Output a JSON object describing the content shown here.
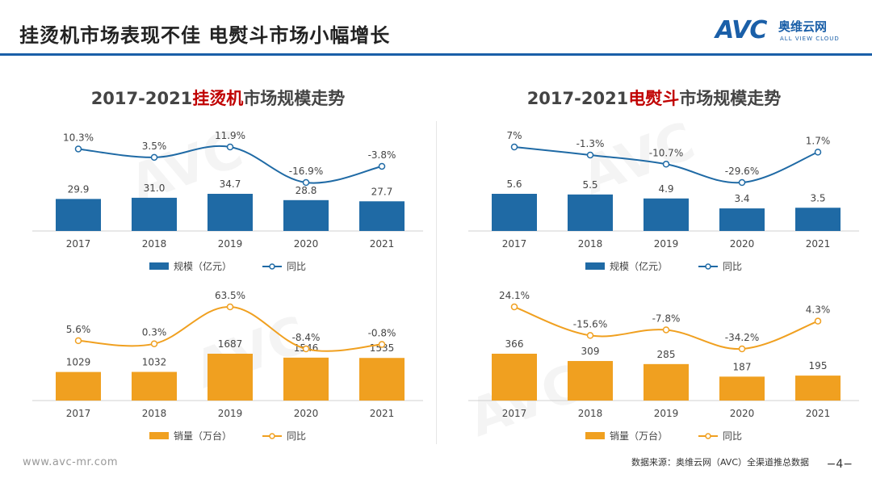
{
  "page": {
    "title": "挂烫机市场表现不佳  电熨斗市场小幅增长",
    "logo": {
      "mark": "AVC",
      "cn": "奥维云网",
      "en": "ALL VIEW CLOUD"
    },
    "footer_url": "www.avc-mr.com",
    "source": "数据来源：奥维云网（AVC）全渠道推总数据",
    "page_number": "−4−"
  },
  "sections": [
    {
      "title_prefix": "2017-2021",
      "title_highlight": "挂烫机",
      "title_suffix": "市场规模走势"
    },
    {
      "title_prefix": "2017-2021",
      "title_highlight": "电熨斗",
      "title_suffix": "市场规模走势"
    }
  ],
  "colors": {
    "blue": "#1f6aa5",
    "orange": "#f0a020",
    "line_blue": "#1f6aa5",
    "line_orange": "#f0a020",
    "accent": "#1a5fa8",
    "highlight": "#c00000"
  },
  "chart_data": [
    {
      "id": "garment-steamer-revenue",
      "type": "bar",
      "categories": [
        "2017",
        "2018",
        "2019",
        "2020",
        "2021"
      ],
      "series": [
        {
          "name": "规模（亿元）",
          "type": "bar",
          "values": [
            29.9,
            31.0,
            34.7,
            28.8,
            27.7
          ],
          "labels": [
            "29.9",
            "31.0",
            "34.7",
            "28.8",
            "27.7"
          ]
        },
        {
          "name": "同比",
          "type": "line",
          "values": [
            10.3,
            3.5,
            11.9,
            -16.9,
            -3.8
          ],
          "labels": [
            "10.3%",
            "3.5%",
            "11.9%",
            "-16.9%",
            "-3.8%"
          ]
        }
      ],
      "color": "blue"
    },
    {
      "id": "iron-revenue",
      "type": "bar",
      "categories": [
        "2017",
        "2018",
        "2019",
        "2020",
        "2021"
      ],
      "series": [
        {
          "name": "规模（亿元）",
          "type": "bar",
          "values": [
            5.6,
            5.5,
            4.9,
            3.4,
            3.5
          ],
          "labels": [
            "5.6",
            "5.5",
            "4.9",
            "3.4",
            "3.5"
          ]
        },
        {
          "name": "同比",
          "type": "line",
          "values": [
            7,
            -1.3,
            -10.7,
            -29.6,
            1.7
          ],
          "labels": [
            "7%",
            "-1.3%",
            "-10.7%",
            "-29.6%",
            "1.7%"
          ]
        }
      ],
      "color": "blue"
    },
    {
      "id": "garment-steamer-volume",
      "type": "bar",
      "categories": [
        "2017",
        "2018",
        "2019",
        "2020",
        "2021"
      ],
      "series": [
        {
          "name": "销量（万台）",
          "type": "bar",
          "values": [
            1029,
            1032,
            1687,
            1546,
            1535
          ],
          "labels": [
            "1029",
            "1032",
            "1687",
            "1546",
            "1535"
          ]
        },
        {
          "name": "同比",
          "type": "line",
          "values": [
            5.6,
            0.3,
            63.5,
            -8.4,
            -0.8
          ],
          "labels": [
            "5.6%",
            "0.3%",
            "63.5%",
            "-8.4%",
            "-0.8%"
          ]
        }
      ],
      "color": "orange"
    },
    {
      "id": "iron-volume",
      "type": "bar",
      "categories": [
        "2017",
        "2018",
        "2019",
        "2020",
        "2021"
      ],
      "series": [
        {
          "name": "销量（万台）",
          "type": "bar",
          "values": [
            366,
            309,
            285,
            187,
            195
          ],
          "labels": [
            "366",
            "309",
            "285",
            "187",
            "195"
          ]
        },
        {
          "name": "同比",
          "type": "line",
          "values": [
            24.1,
            -15.6,
            -7.8,
            -34.2,
            4.3
          ],
          "labels": [
            "24.1%",
            "-15.6%",
            "-7.8%",
            "-34.2%",
            "4.3%"
          ]
        }
      ],
      "color": "orange"
    }
  ]
}
